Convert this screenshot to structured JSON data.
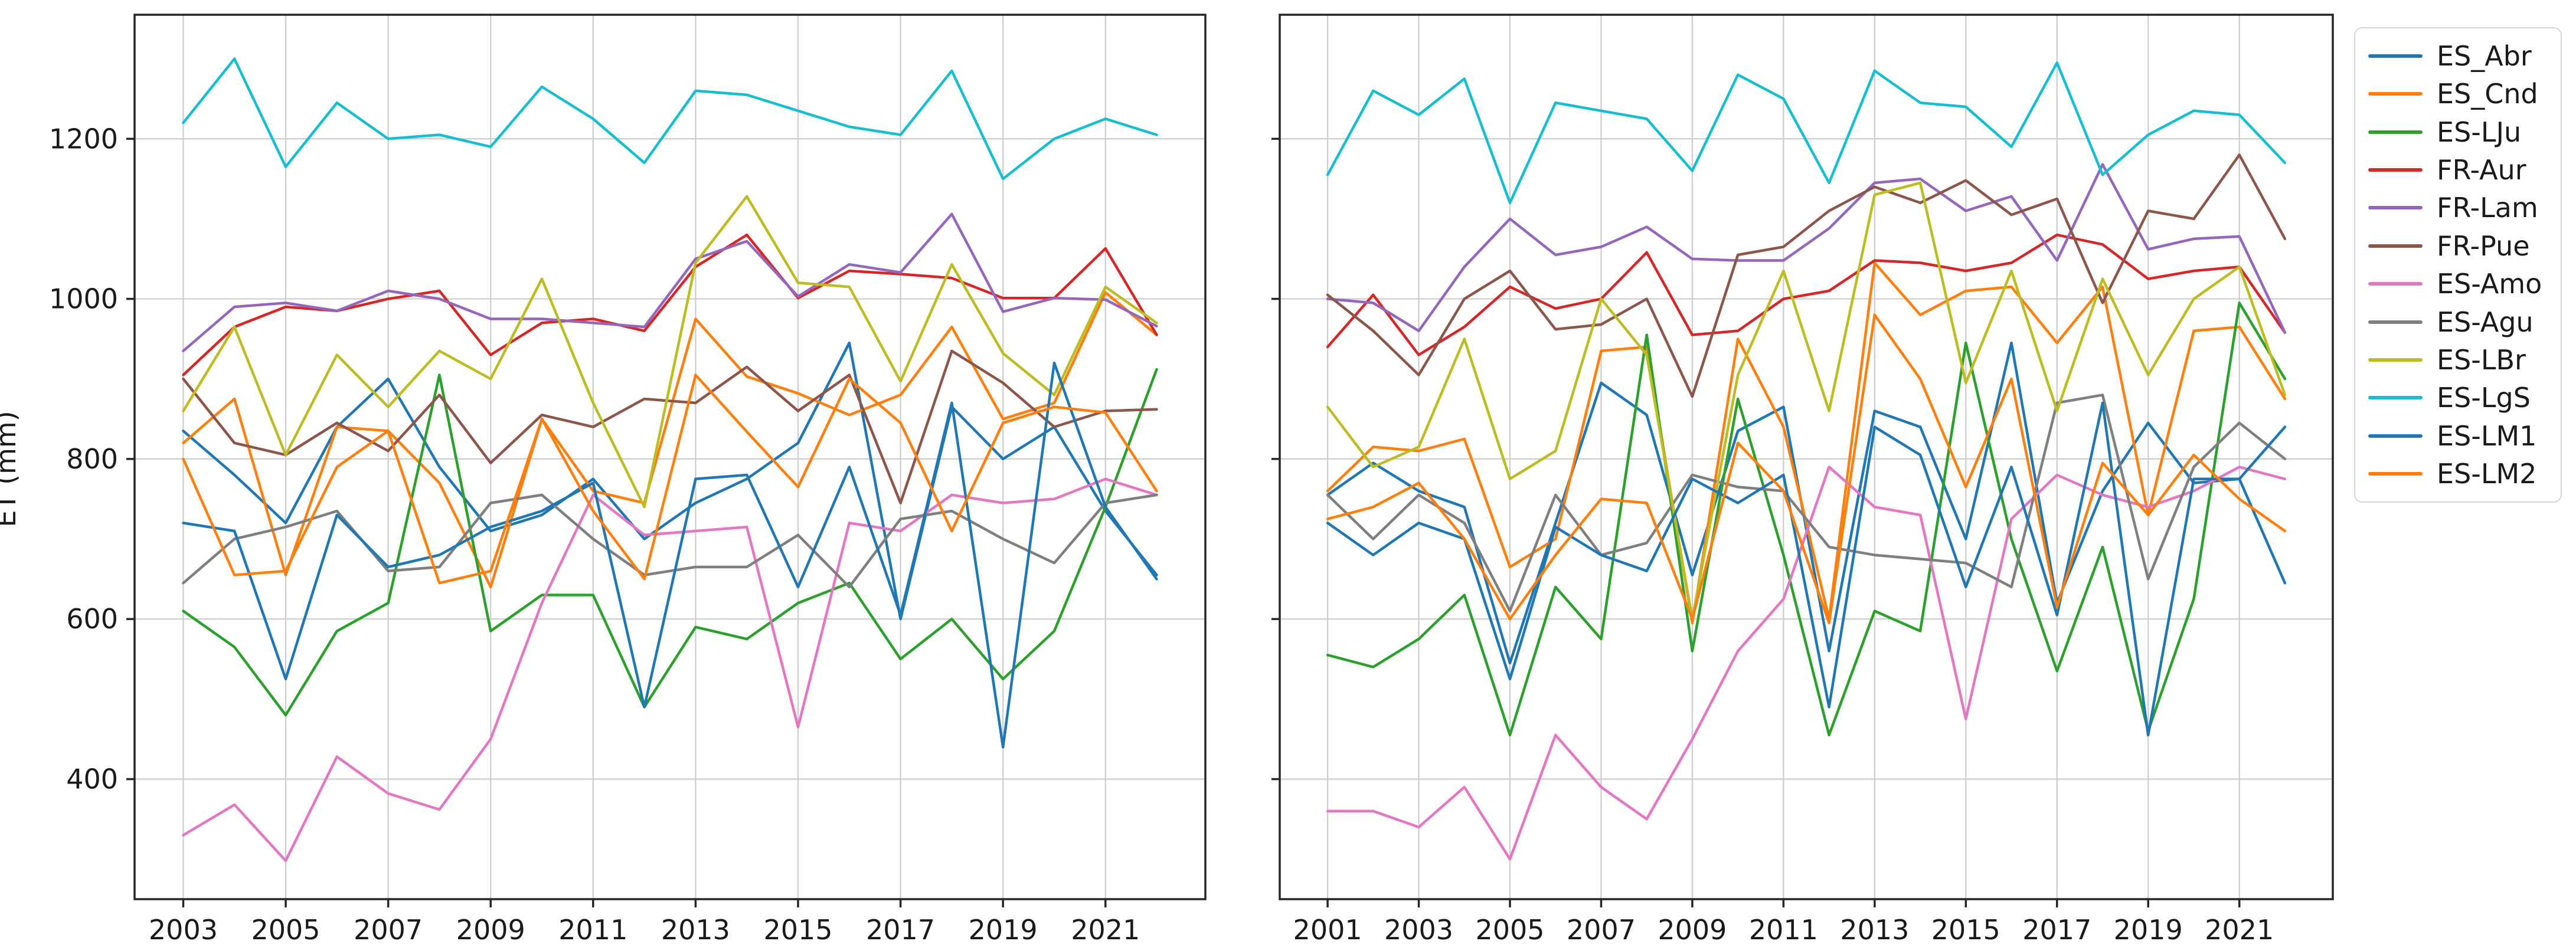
{
  "chart_data": {
    "type": "line",
    "title": "",
    "xlabel": "",
    "ylabel": "ET (mm)",
    "grid": true,
    "legend_position": "right-outside",
    "y_ticks": [
      400,
      600,
      800,
      1000,
      1200
    ],
    "ylim": [
      250,
      1355
    ],
    "colors": {
      "ES_Abr": "#1f77b4",
      "ES_Cnd": "#ff7f0e",
      "ES-LJu": "#2ca02c",
      "FR-Aur": "#d62728",
      "FR-Lam": "#9467bd",
      "FR-Pue": "#8c564b",
      "ES-Amo": "#e377c2",
      "ES-Agu": "#7f7f7f",
      "ES-LBr": "#bcbd22",
      "ES-LgS": "#17becf",
      "ES-LM1": "#1f77b4",
      "ES-LM2": "#ff7f0e"
    },
    "subplots": [
      {
        "name": "left-plot",
        "x_ticks": [
          2003,
          2005,
          2007,
          2009,
          2011,
          2013,
          2015,
          2017,
          2019,
          2021
        ],
        "xlim": [
          2002.05,
          2022.95
        ],
        "years": [
          2003,
          2004,
          2005,
          2006,
          2007,
          2008,
          2009,
          2010,
          2011,
          2012,
          2013,
          2014,
          2015,
          2016,
          2017,
          2018,
          2019,
          2020,
          2021,
          2022
        ],
        "series": [
          {
            "name": "ES_Abr",
            "values": [
              835,
              780,
              720,
              840,
              900,
              790,
              710,
              730,
              775,
              700,
              745,
              775,
              820,
              945,
              600,
              865,
              800,
              840,
              735,
              655
            ]
          },
          {
            "name": "ES_Cnd",
            "values": [
              820,
              875,
              655,
              840,
              835,
              770,
              640,
              850,
              760,
              745,
              975,
              903,
              882,
              855,
              880,
              965,
              850,
              870,
              1008,
              955
            ]
          },
          {
            "name": "ES-LJu",
            "values": [
              610,
              565,
              480,
              585,
              620,
              905,
              585,
              630,
              630,
              490,
              590,
              575,
              620,
              645,
              550,
              600,
              525,
              585,
              740,
              912
            ]
          },
          {
            "name": "FR-Aur",
            "values": [
              905,
              965,
              990,
              985,
              1000,
              1010,
              930,
              970,
              975,
              960,
              1040,
              1080,
              1001,
              1035,
              1031,
              1026,
              1001,
              1001,
              1063,
              955
            ]
          },
          {
            "name": "FR-Lam",
            "values": [
              935,
              990,
              995,
              985,
              1010,
              1000,
              975,
              975,
              970,
              965,
              1050,
              1072,
              1003,
              1043,
              1033,
              1106,
              984,
              1001,
              999,
              966
            ]
          },
          {
            "name": "FR-Pue",
            "values": [
              900,
              820,
              805,
              845,
              810,
              880,
              795,
              855,
              840,
              875,
              870,
              915,
              860,
              905,
              745,
              935,
              895,
              840,
              860,
              862
            ]
          },
          {
            "name": "ES-Amo",
            "values": [
              330,
              368,
              298,
              428,
              382,
              362,
              450,
              620,
              755,
              705,
              710,
              715,
              465,
              720,
              710,
              755,
              745,
              750,
              775,
              755
            ]
          },
          {
            "name": "ES-Agu",
            "values": [
              645,
              700,
              715,
              735,
              660,
              665,
              745,
              755,
              700,
              655,
              665,
              665,
              705,
              640,
              725,
              735,
              700,
              670,
              745,
              755
            ]
          },
          {
            "name": "ES-LBr",
            "values": [
              860,
              965,
              805,
              930,
              865,
              935,
              900,
              1025,
              870,
              740,
              1045,
              1128,
              1020,
              1015,
              897,
              1043,
              932,
              880,
              1015,
              970
            ]
          },
          {
            "name": "ES-LgS",
            "values": [
              1220,
              1300,
              1165,
              1245,
              1200,
              1205,
              1190,
              1265,
              1225,
              1170,
              1260,
              1255,
              1235,
              1215,
              1205,
              1285,
              1150,
              1200,
              1225,
              1205
            ]
          },
          {
            "name": "ES-LM1",
            "values": [
              720,
              710,
              525,
              730,
              665,
              680,
              715,
              735,
              770,
              490,
              775,
              780,
              640,
              790,
              605,
              870,
              440,
              920,
              740,
              650
            ]
          },
          {
            "name": "ES-LM2",
            "values": [
              800,
              655,
              660,
              790,
              835,
              645,
              660,
              850,
              735,
              650,
              905,
              834,
              765,
              900,
              845,
              710,
              845,
              865,
              858,
              760
            ]
          }
        ]
      },
      {
        "name": "right-plot",
        "x_ticks": [
          2001,
          2003,
          2005,
          2007,
          2009,
          2011,
          2013,
          2015,
          2017,
          2019,
          2021
        ],
        "xlim": [
          1999.95,
          2023.05
        ],
        "years": [
          2001,
          2002,
          2003,
          2004,
          2005,
          2006,
          2007,
          2008,
          2009,
          2010,
          2011,
          2012,
          2013,
          2014,
          2015,
          2016,
          2017,
          2018,
          2019,
          2020,
          2021,
          2022
        ],
        "series": [
          {
            "name": "ES_Abr",
            "values": [
              755,
              795,
              760,
              740,
              545,
              720,
              895,
              855,
              655,
              835,
              865,
              560,
              860,
              840,
              700,
              945,
              620,
              760,
              845,
              770,
              775,
              645
            ]
          },
          {
            "name": "ES_Cnd",
            "values": [
              760,
              815,
              810,
              825,
              665,
              700,
              935,
              940,
              595,
              950,
              840,
              600,
              1045,
              980,
              1010,
              1015,
              945,
              1015,
              730,
              960,
              965,
              875
            ]
          },
          {
            "name": "ES-LJu",
            "values": [
              555,
              540,
              575,
              630,
              455,
              640,
              575,
              955,
              560,
              875,
              680,
              455,
              610,
              585,
              945,
              700,
              535,
              690,
              460,
              625,
              995,
              900
            ]
          },
          {
            "name": "FR-Aur",
            "values": [
              940,
              1005,
              930,
              965,
              1015,
              988,
              1000,
              1058,
              955,
              960,
              1000,
              1010,
              1048,
              1045,
              1035,
              1045,
              1080,
              1068,
              1025,
              1035,
              1040,
              958
            ]
          },
          {
            "name": "FR-Lam",
            "values": [
              1000,
              995,
              960,
              1040,
              1100,
              1055,
              1065,
              1090,
              1050,
              1048,
              1048,
              1088,
              1145,
              1150,
              1110,
              1128,
              1048,
              1168,
              1062,
              1075,
              1078,
              958
            ]
          },
          {
            "name": "FR-Pue",
            "values": [
              1005,
              960,
              905,
              1000,
              1035,
              962,
              968,
              1000,
              878,
              1055,
              1065,
              1110,
              1140,
              1120,
              1148,
              1105,
              1125,
              995,
              1110,
              1100,
              1180,
              1075
            ]
          },
          {
            "name": "ES-Amo",
            "values": [
              360,
              360,
              340,
              390,
              300,
              455,
              390,
              350,
              450,
              560,
              625,
              790,
              740,
              730,
              475,
              725,
              780,
              755,
              740,
              760,
              790,
              775
            ]
          },
          {
            "name": "ES-Agu",
            "values": [
              755,
              700,
              755,
              720,
              610,
              755,
              680,
              695,
              780,
              765,
              760,
              690,
              680,
              675,
              670,
              640,
              870,
              880,
              650,
              790,
              845,
              800
            ]
          },
          {
            "name": "ES-LBr",
            "values": [
              865,
              790,
              815,
              950,
              775,
              810,
              1000,
              930,
              600,
              905,
              1035,
              860,
              1130,
              1145,
              895,
              1035,
              860,
              1025,
              905,
              1000,
              1040,
              880
            ]
          },
          {
            "name": "ES-LgS",
            "values": [
              1155,
              1260,
              1230,
              1275,
              1120,
              1245,
              1235,
              1225,
              1160,
              1280,
              1250,
              1145,
              1285,
              1245,
              1240,
              1190,
              1295,
              1155,
              1205,
              1235,
              1230,
              1170
            ]
          },
          {
            "name": "ES-LM1",
            "values": [
              720,
              680,
              720,
              700,
              525,
              715,
              680,
              660,
              775,
              745,
              780,
              490,
              840,
              805,
              640,
              790,
              605,
              870,
              455,
              775,
              775,
              840
            ]
          },
          {
            "name": "ES-LM2",
            "values": [
              725,
              740,
              770,
              700,
              600,
              680,
              750,
              745,
              600,
              820,
              760,
              595,
              980,
              900,
              765,
              900,
              615,
              795,
              730,
              805,
              750,
              710
            ]
          }
        ]
      }
    ]
  },
  "legend": {
    "labels": [
      "ES_Abr",
      "ES_Cnd",
      "ES-LJu",
      "FR-Aur",
      "FR-Lam",
      "FR-Pue",
      "ES-Amo",
      "ES-Agu",
      "ES-LBr",
      "ES-LgS",
      "ES-LM1",
      "ES-LM2"
    ]
  },
  "style": {
    "grid_color": "#cccccc",
    "spine_color": "#262626",
    "tick_label_color": "#1a1a1a"
  }
}
